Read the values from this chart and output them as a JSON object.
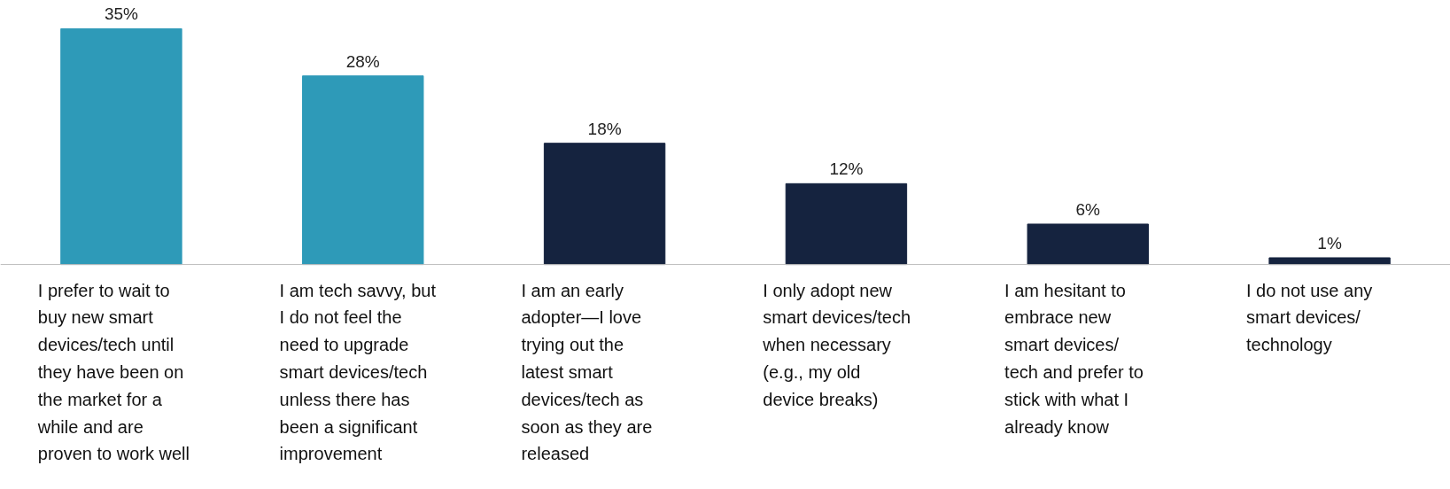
{
  "chart_data": {
    "type": "bar",
    "categories": [
      "I prefer to wait to\nbuy new smart\ndevices/tech until\nthey have been on\nthe market for a\nwhile and are\nproven to work well",
      "I am tech savvy, but\nI do not feel the\nneed to upgrade\nsmart devices/tech\nunless there has\nbeen a significant\nimprovement",
      "I am an early\nadopter—I love\ntrying out the\nlatest smart\ndevices/tech as\nsoon as they are\nreleased",
      "I only adopt new\nsmart devices/tech\nwhen necessary\n(e.g., my old\ndevice breaks)",
      "I am hesitant to\nembrace new\nsmart devices/\ntech and prefer to\nstick with what I\nalready know",
      "I do not use any\nsmart devices/\ntechnology"
    ],
    "values": [
      35,
      28,
      18,
      12,
      6,
      1
    ],
    "colors": [
      "#2e9ab8",
      "#2e9ab8",
      "#15233f",
      "#15233f",
      "#15233f",
      "#15233f"
    ],
    "value_labels": [
      "35%",
      "28%",
      "18%",
      "12%",
      "6%",
      "1%"
    ]
  }
}
